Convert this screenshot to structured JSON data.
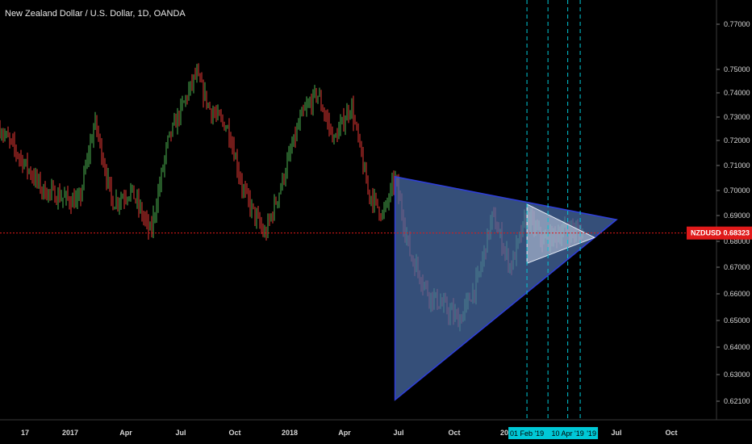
{
  "chart_data": {
    "type": "candlestick",
    "title": "New Zealand Dollar / U.S. Dollar, 1D, OANDA",
    "symbol_tag": "NZDUSD",
    "last_price": "0.68323",
    "y_ticks": [
      "0.77000",
      "0.75000",
      "0.74000",
      "0.73000",
      "0.72000",
      "0.71000",
      "0.70000",
      "0.69000",
      "0.68000",
      "0.67000",
      "0.66000",
      "0.65000",
      "0.64000",
      "0.63000",
      "0.62100"
    ],
    "x_ticks": [
      "17",
      "2017",
      "Apr",
      "Jul",
      "Oct",
      "2018",
      "Apr",
      "Jul",
      "Oct",
      "2019",
      "Apr",
      "Jul",
      "Oct"
    ],
    "date_markers": [
      "01 Feb '19",
      "10 Apr '19"
    ],
    "date_marker_partial": "'19",
    "price_path": [
      [
        "2016-12-01",
        0.725
      ],
      [
        "2016-12-20",
        0.7
      ],
      [
        "2017-01-15",
        0.695
      ],
      [
        "2017-02-10",
        0.728
      ],
      [
        "2017-03-10",
        0.695
      ],
      [
        "2017-04-10",
        0.7
      ],
      [
        "2017-05-12",
        0.683
      ],
      [
        "2017-06-10",
        0.72
      ],
      [
        "2017-07-27",
        0.748
      ],
      [
        "2017-08-20",
        0.733
      ],
      [
        "2017-09-20",
        0.725
      ],
      [
        "2017-10-15",
        0.7
      ],
      [
        "2017-11-20",
        0.682
      ],
      [
        "2017-12-15",
        0.7
      ],
      [
        "2018-01-20",
        0.73
      ],
      [
        "2018-02-15",
        0.74
      ],
      [
        "2018-03-15",
        0.72
      ],
      [
        "2018-04-12",
        0.735
      ],
      [
        "2018-05-10",
        0.7
      ],
      [
        "2018-06-05",
        0.69
      ],
      [
        "2018-06-25",
        0.705
      ],
      [
        "2018-07-20",
        0.675
      ],
      [
        "2018-08-20",
        0.66
      ],
      [
        "2018-10-10",
        0.65
      ],
      [
        "2018-11-10",
        0.665
      ],
      [
        "2018-12-05",
        0.69
      ],
      [
        "2019-01-05",
        0.67
      ],
      [
        "2019-02-01",
        0.69
      ],
      [
        "2019-03-01",
        0.68
      ],
      [
        "2019-04-10",
        0.685
      ],
      [
        "2019-05-05",
        0.683
      ]
    ],
    "drawings": {
      "large_triangle": [
        [
          "2018-06-25",
          0.7055
        ],
        [
          "2018-06-25",
          0.6215
        ],
        [
          "2019-07-01",
          0.6884
        ]
      ],
      "small_triangle": [
        [
          "2019-02-01",
          0.6945
        ],
        [
          "2019-02-01",
          0.6715
        ],
        [
          "2019-05-25",
          0.6815
        ]
      ],
      "vertical_lines": [
        "2019-02-01",
        "2019-03-08",
        "2019-04-10",
        "2019-05-01"
      ],
      "price_line": 0.68323
    },
    "colors": {
      "up": "#4caf50",
      "down": "#e53935",
      "triangle_fill": "#4a6ea8",
      "triangle_edge": "#2f3fd8",
      "marker": "#00c8d6",
      "tag": "#e01a1a"
    }
  }
}
